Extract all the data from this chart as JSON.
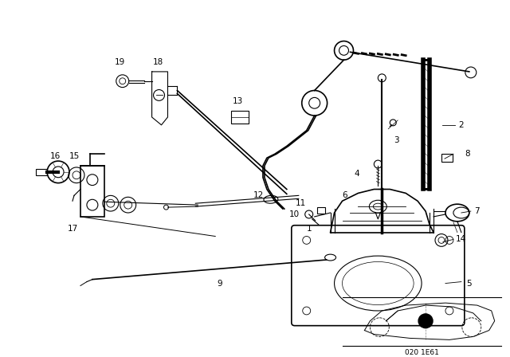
{
  "bg_color": "#ffffff",
  "diagram_code": "020 1E61",
  "fig_width": 6.4,
  "fig_height": 4.48,
  "dpi": 100
}
